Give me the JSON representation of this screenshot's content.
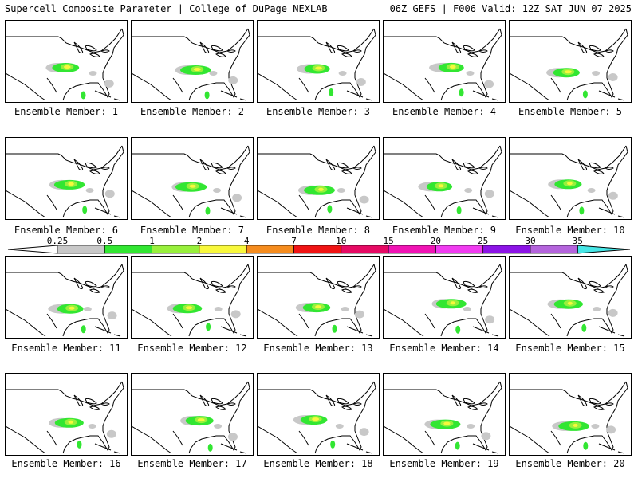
{
  "header": {
    "left": "Supercell Composite Parameter | College of DuPage NEXLAB",
    "right": "06Z GEFS | F006 Valid: 12Z SAT JUN 07 2025"
  },
  "panel_caption_prefix": "Ensemble Member: ",
  "members": [
    "1",
    "2",
    "3",
    "4",
    "5",
    "6",
    "7",
    "8",
    "9",
    "10",
    "11",
    "12",
    "13",
    "14",
    "15",
    "16",
    "17",
    "18",
    "19",
    "20"
  ],
  "colorbar": {
    "labels": [
      "0.25",
      "0.5",
      "1",
      "2",
      "4",
      "7",
      "10",
      "15",
      "20",
      "25",
      "30",
      "35"
    ],
    "colors": [
      "#c8c8c8",
      "#32e632",
      "#98f03c",
      "#f8f83c",
      "#f58c1e",
      "#f01414",
      "#e60a64",
      "#f014b4",
      "#f03cf0",
      "#8c14e6",
      "#b464dc",
      "#46e6e6"
    ]
  },
  "colors": {
    "map_lines": "#000000",
    "background": "#ffffff"
  }
}
